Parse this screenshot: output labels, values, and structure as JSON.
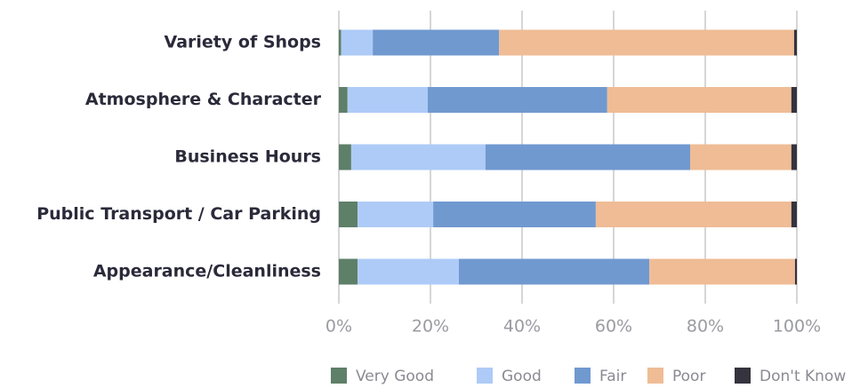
{
  "chart_data": {
    "type": "stacked-barh",
    "categories": [
      "Variety of Shops",
      "Atmosphere & Character",
      "Business Hours",
      "Public Transport / Car Parking",
      "Appearance/Cleanliness"
    ],
    "series": [
      {
        "name": "Very Good",
        "color": "#5e7f68",
        "values": [
          0.5,
          1.9,
          2.7,
          4.1,
          4.1
        ]
      },
      {
        "name": "Good",
        "color": "#aecbf7",
        "values": [
          6.9,
          17.5,
          29.3,
          16.5,
          22.1
        ]
      },
      {
        "name": "Fair",
        "color": "#7099d0",
        "values": [
          27.6,
          39.2,
          44.7,
          35.5,
          41.6
        ]
      },
      {
        "name": "Poor",
        "color": "#efbc95",
        "values": [
          64.4,
          40.2,
          22.1,
          42.7,
          31.8
        ]
      },
      {
        "name": "Don't Know",
        "color": "#35333d",
        "values": [
          0.6,
          1.2,
          1.2,
          1.2,
          0.4
        ]
      }
    ],
    "xlim": [
      0,
      100
    ],
    "xticks": [
      {
        "value": 0,
        "label": "0%"
      },
      {
        "value": 20,
        "label": "20%"
      },
      {
        "value": 40,
        "label": "40%"
      },
      {
        "value": 60,
        "label": "60%"
      },
      {
        "value": 80,
        "label": "80%"
      },
      {
        "value": 100,
        "label": "100%"
      }
    ],
    "grid": true
  }
}
